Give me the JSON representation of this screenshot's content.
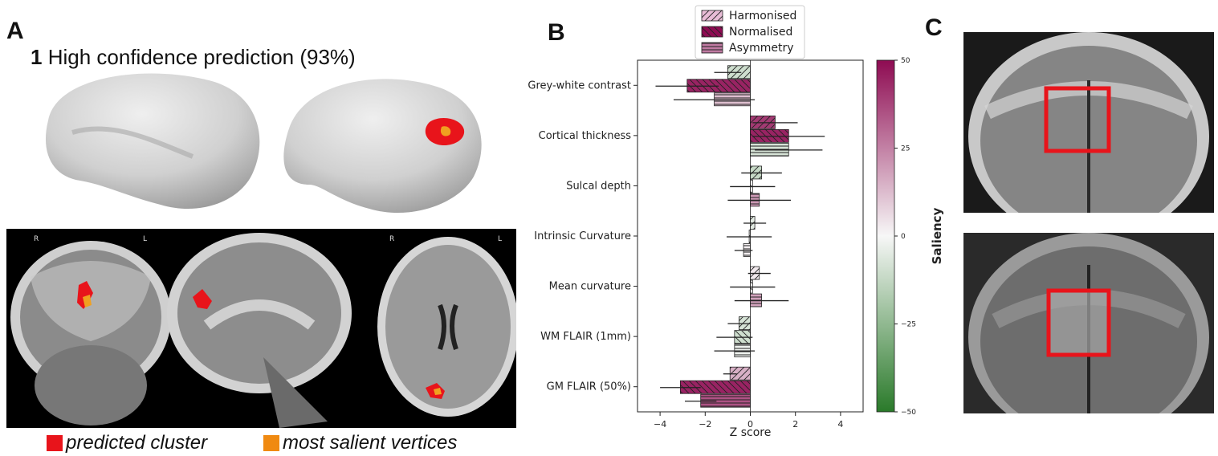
{
  "panel_a": {
    "letter": "A",
    "title_number": "1",
    "title_text": "High confidence prediction (93%)",
    "legend": [
      {
        "label": "predicted cluster",
        "color": "#e8141b"
      },
      {
        "label": "most salient vertices",
        "color": "#f08a11"
      }
    ],
    "orientation_labels": {
      "coronal_right": "R",
      "coronal_left": "L",
      "axial_right": "R",
      "axial_left": "L"
    },
    "colors": {
      "cluster": "#e8141b",
      "salient": "#f0a020",
      "surface": "#d6d6d6"
    }
  },
  "panel_b": {
    "letter": "B"
  },
  "panel_c": {
    "letter": "C"
  },
  "chart_data": {
    "type": "bar",
    "orientation": "horizontal",
    "categories": [
      "Grey-white contrast",
      "Cortical thickness",
      "Sulcal depth",
      "Intrinsic Curvature",
      "Mean curvature",
      "WM FLAIR (1mm)",
      "GM FLAIR (50%)"
    ],
    "series": [
      {
        "name": "Harmonised",
        "hatch": "backslash",
        "values": [
          -1.0,
          1.1,
          0.5,
          0.2,
          0.4,
          -0.5,
          -0.9
        ],
        "errors": [
          0.6,
          1.0,
          0.9,
          0.5,
          0.5,
          0.5,
          0.3
        ],
        "saliency": [
          -10,
          40,
          -12,
          -5,
          3,
          -8,
          15
        ]
      },
      {
        "name": "Normalised",
        "hatch": "slash",
        "values": [
          -2.8,
          1.7,
          0.1,
          -0.05,
          0.1,
          -0.7,
          -3.1
        ],
        "errors": [
          1.4,
          1.6,
          1.0,
          1.0,
          1.0,
          0.8,
          0.9
        ],
        "saliency": [
          45,
          45,
          0,
          0,
          0,
          -10,
          45
        ]
      },
      {
        "name": "Asymmetry",
        "hatch": "horizontal",
        "values": [
          -1.6,
          1.7,
          0.4,
          -0.3,
          0.5,
          -0.7,
          -2.2
        ],
        "errors": [
          1.8,
          1.5,
          1.4,
          0.4,
          1.2,
          0.9,
          0.7
        ],
        "saliency": [
          12,
          -8,
          20,
          2,
          18,
          -2,
          35
        ]
      }
    ],
    "xlabel": "Z score",
    "xlim": [
      -5,
      5
    ],
    "xticks": [
      -4,
      -2,
      0,
      2,
      4
    ],
    "grid": false,
    "legend_position": "top",
    "colorbar": {
      "label": "Saliency",
      "min": -50,
      "max": 50,
      "ticks": [
        50,
        25,
        0,
        -25,
        -50
      ],
      "tick_labels": [
        "50",
        "25",
        "0",
        "−25",
        "−50"
      ],
      "cmap": [
        "#2a7a2a",
        "#f7f7f7",
        "#8e0b52"
      ]
    }
  }
}
